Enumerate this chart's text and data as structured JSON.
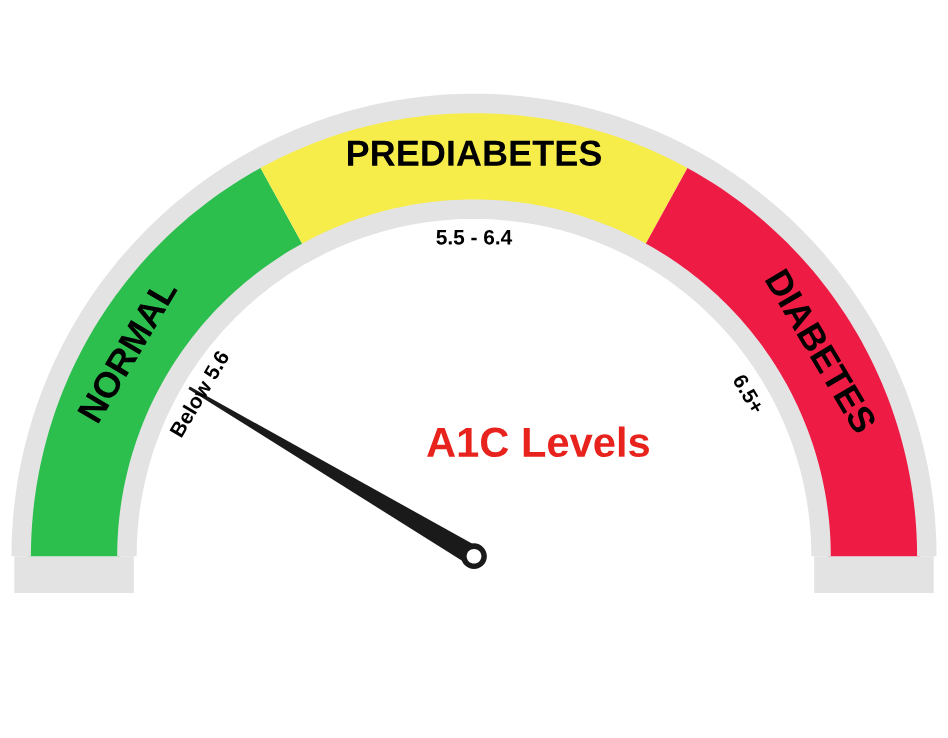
{
  "chart_data": {
    "type": "donut",
    "title": "A1C Levels",
    "categories": [
      "NORMAL",
      "PREDIABETES",
      "DIABETES"
    ],
    "values": [
      34,
      32,
      34
    ],
    "colors": [
      "#2dbf4e",
      "#f6ec4a",
      "#ee1c44"
    ],
    "annotations": [
      "Below 5.6",
      "5.5 - 6.4",
      "6.5+"
    ],
    "needle": "NORMAL"
  }
}
